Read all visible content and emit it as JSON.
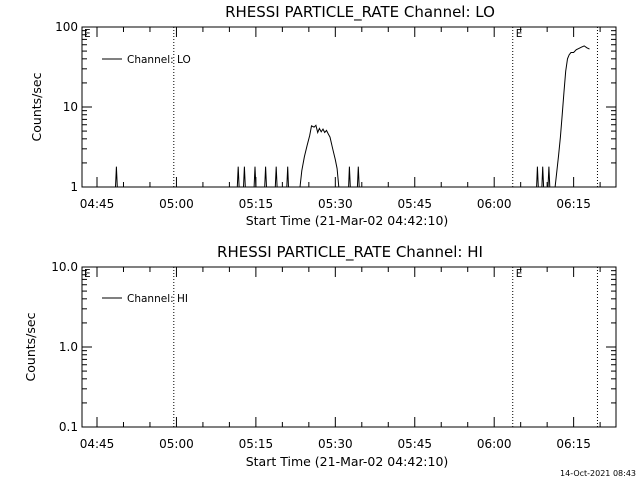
{
  "chart_data": [
    {
      "type": "line",
      "title": "RHESSI PARTICLE_RATE Channel: LO",
      "xlabel": "Start Time (21-Mar-02 04:42:10)",
      "ylabel": "Counts/sec",
      "yscale": "log",
      "ylim": [
        1,
        100
      ],
      "y_ticks": [
        1,
        10,
        100
      ],
      "y_tick_labels": [
        "1",
        "10",
        "100"
      ],
      "xlim": [
        "04:42:10",
        "06:23:00"
      ],
      "x_ticks": [
        "04:45",
        "05:00",
        "05:15",
        "05:30",
        "05:45",
        "06:00",
        "06:15"
      ],
      "legend": "top-left",
      "grid": false,
      "event_markers": [
        {
          "time": "04:59:30",
          "label": ""
        },
        {
          "time": "06:03:30",
          "label": "E"
        },
        {
          "time": "06:19:30",
          "label": ""
        }
      ],
      "start_marker_label": "E",
      "series": [
        {
          "name": "Channel: LO",
          "color": "#000000",
          "points": [
            [
              "04:42:10",
              1.0
            ],
            [
              "04:48:30",
              1.0
            ],
            [
              "04:48:40",
              1.8
            ],
            [
              "04:48:50",
              1.0
            ],
            [
              "05:11:30",
              1.0
            ],
            [
              "05:11:40",
              1.8
            ],
            [
              "05:11:50",
              1.0
            ],
            [
              "05:12:40",
              1.0
            ],
            [
              "05:12:50",
              1.8
            ],
            [
              "05:13:00",
              1.0
            ],
            [
              "05:14:40",
              1.0
            ],
            [
              "05:14:50",
              1.8
            ],
            [
              "05:15:00",
              1.0
            ],
            [
              "05:16:40",
              1.0
            ],
            [
              "05:16:50",
              1.8
            ],
            [
              "05:17:00",
              1.0
            ],
            [
              "05:18:40",
              1.0
            ],
            [
              "05:18:50",
              1.8
            ],
            [
              "05:19:00",
              1.0
            ],
            [
              "05:20:50",
              1.0
            ],
            [
              "05:21:00",
              1.8
            ],
            [
              "05:21:10",
              1.0
            ],
            [
              "05:23:20",
              1.0
            ],
            [
              "05:23:40",
              1.6
            ],
            [
              "05:24:10",
              2.4
            ],
            [
              "05:24:40",
              3.3
            ],
            [
              "05:25:10",
              4.4
            ],
            [
              "05:25:30",
              5.8
            ],
            [
              "05:26:00",
              5.6
            ],
            [
              "05:26:20",
              5.9
            ],
            [
              "05:26:40",
              4.8
            ],
            [
              "05:27:00",
              5.4
            ],
            [
              "05:27:20",
              4.9
            ],
            [
              "05:27:40",
              5.3
            ],
            [
              "05:28:00",
              4.8
            ],
            [
              "05:28:20",
              5.1
            ],
            [
              "05:28:40",
              4.6
            ],
            [
              "05:29:00",
              4.2
            ],
            [
              "05:29:30",
              3.0
            ],
            [
              "05:30:00",
              2.2
            ],
            [
              "05:30:20",
              1.7
            ],
            [
              "05:30:40",
              1.0
            ],
            [
              "05:32:30",
              1.0
            ],
            [
              "05:32:40",
              1.8
            ],
            [
              "05:32:50",
              1.0
            ],
            [
              "05:34:10",
              1.0
            ],
            [
              "05:34:20",
              1.8
            ],
            [
              "05:34:30",
              1.0
            ],
            [
              "06:08:00",
              1.0
            ],
            [
              "06:08:10",
              1.8
            ],
            [
              "06:08:20",
              1.0
            ],
            [
              "06:09:00",
              1.0
            ],
            [
              "06:09:10",
              1.8
            ],
            [
              "06:09:20",
              1.0
            ],
            [
              "06:10:10",
              1.0
            ],
            [
              "06:10:20",
              1.8
            ],
            [
              "06:10:30",
              1.0
            ],
            [
              "06:11:30",
              1.0
            ],
            [
              "06:11:50",
              1.6
            ],
            [
              "06:12:10",
              2.5
            ],
            [
              "06:12:30",
              4.2
            ],
            [
              "06:12:50",
              8.0
            ],
            [
              "06:13:10",
              15
            ],
            [
              "06:13:30",
              28
            ],
            [
              "06:13:50",
              40
            ],
            [
              "06:14:10",
              45
            ],
            [
              "06:14:30",
              48
            ],
            [
              "06:15:00",
              48
            ],
            [
              "06:15:30",
              52
            ],
            [
              "06:16:00",
              54
            ],
            [
              "06:16:30",
              56
            ],
            [
              "06:17:00",
              58
            ],
            [
              "06:17:30",
              55
            ],
            [
              "06:18:00",
              53
            ]
          ]
        }
      ]
    },
    {
      "type": "line",
      "title": "RHESSI PARTICLE_RATE Channel: HI",
      "xlabel": "Start Time (21-Mar-02 04:42:10)",
      "ylabel": "Counts/sec",
      "yscale": "log",
      "ylim": [
        0.1,
        10
      ],
      "y_ticks": [
        0.1,
        1,
        10
      ],
      "y_tick_labels": [
        "0.1",
        "1.0",
        "10.0"
      ],
      "xlim": [
        "04:42:10",
        "06:23:00"
      ],
      "x_ticks": [
        "04:45",
        "05:00",
        "05:15",
        "05:30",
        "05:45",
        "06:00",
        "06:15"
      ],
      "legend": "top-left",
      "grid": false,
      "event_markers": [
        {
          "time": "04:59:30",
          "label": ""
        },
        {
          "time": "06:03:30",
          "label": "E"
        },
        {
          "time": "06:19:30",
          "label": ""
        }
      ],
      "start_marker_label": "E",
      "series": [
        {
          "name": "Channel: HI",
          "color": "#000000",
          "points": []
        }
      ]
    }
  ],
  "footer": {
    "timestamp": "14-Oct-2021 08:43"
  }
}
